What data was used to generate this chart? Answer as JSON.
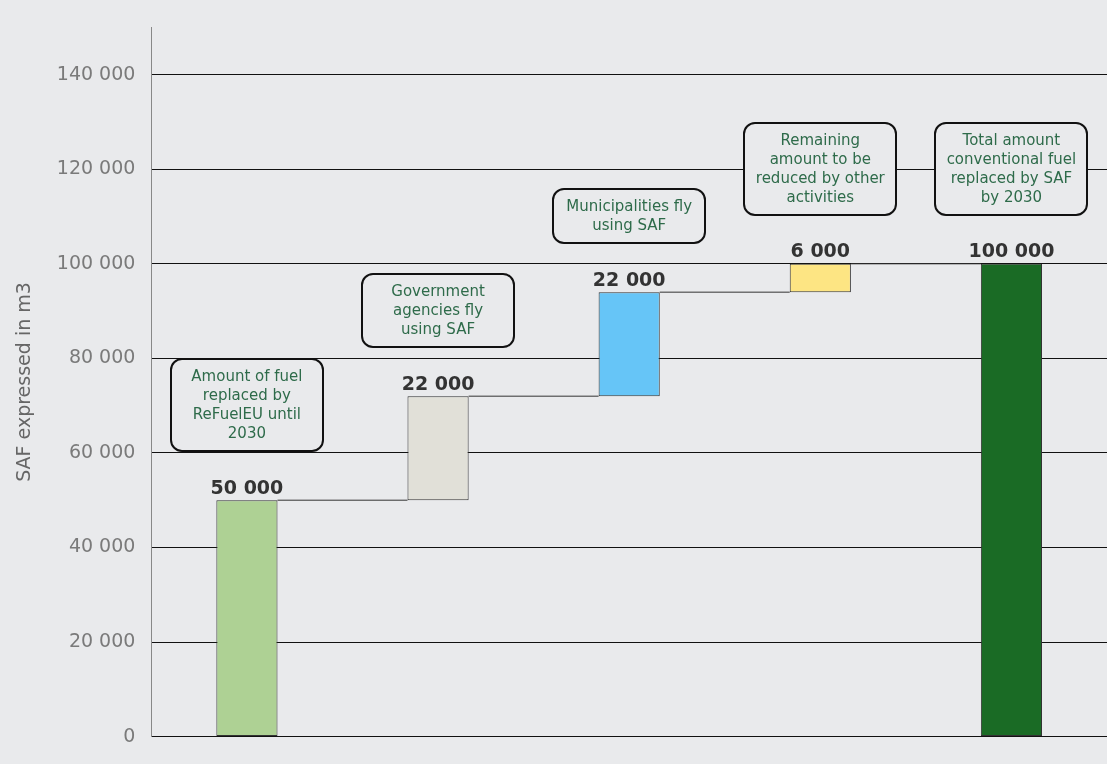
{
  "chart_data": {
    "type": "bar",
    "ylabel": "SAF expressed in m3",
    "categories": [
      "Amount of fuel replaced by ReFuelEU until 2030",
      "Government agencies fly using SAF",
      "Municipalities fly using SAF",
      "Remaining amount to be reduced by other activities",
      "Total amount conventional fuel replaced by SAF by 2030"
    ],
    "values": [
      50000,
      22000,
      22000,
      6000,
      100000
    ],
    "base": [
      0,
      50000,
      72000,
      94000,
      0
    ],
    "colors": [
      "#aed194",
      "#e1e0d8",
      "#66c5f7",
      "#fde583",
      "#1a6b25"
    ],
    "ylim": [
      0,
      150000
    ],
    "yticks": [
      {
        "value": 0,
        "label": "0"
      },
      {
        "value": 20000,
        "label": "20 000"
      },
      {
        "value": 40000,
        "label": "40 000"
      },
      {
        "value": 60000,
        "label": "60 000"
      },
      {
        "value": 80000,
        "label": "80 000"
      },
      {
        "value": 100000,
        "label": "100 000"
      },
      {
        "value": 120000,
        "label": "120 000"
      },
      {
        "value": 140000,
        "label": "140 000"
      }
    ],
    "grid": "y",
    "legend": false,
    "data_labels": true
  }
}
